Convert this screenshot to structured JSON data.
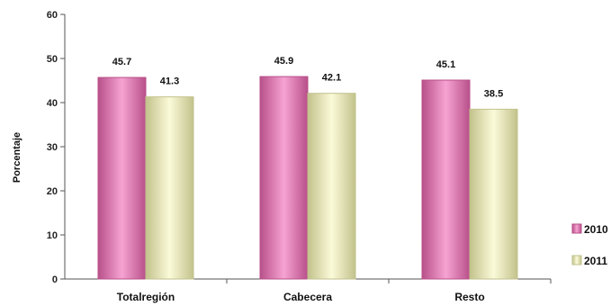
{
  "chart_data": {
    "type": "bar",
    "ylabel": "Porcentaje",
    "xlabel": "",
    "title": "",
    "ylim": [
      0,
      60
    ],
    "yticks": [
      0,
      10,
      20,
      30,
      40,
      50,
      60
    ],
    "categories": [
      "Totalregión",
      "Cabecera",
      "Resto"
    ],
    "series": [
      {
        "name": "2010",
        "values": [
          45.7,
          45.9,
          45.1
        ],
        "labels": [
          "45.7",
          "45.9",
          "45.1"
        ],
        "color": "#b8508a",
        "highlight": "#f6a3d2"
      },
      {
        "name": "2011",
        "values": [
          41.3,
          42.1,
          38.5
        ],
        "labels": [
          "41.3",
          "42.1",
          "38.5"
        ],
        "color": "#c2c28c",
        "highlight": "#fbfad9"
      }
    ],
    "grid": false,
    "legend_position": "right"
  }
}
